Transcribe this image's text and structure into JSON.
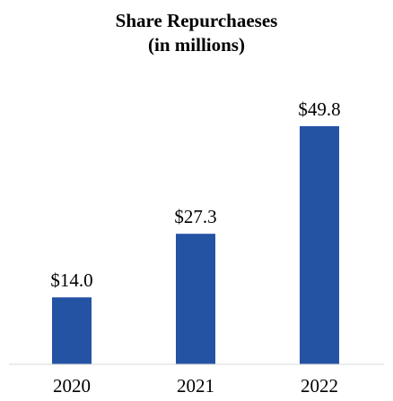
{
  "chart_data": {
    "type": "bar",
    "title": "Share Repurchaeses",
    "subtitle": "(in millions)",
    "categories": [
      "2020",
      "2021",
      "2022"
    ],
    "values": [
      14.0,
      27.3,
      49.8
    ],
    "value_labels": [
      "$14.0",
      "$27.3",
      "$49.8"
    ],
    "xlabel": "",
    "ylabel": "",
    "ylim": [
      0,
      49.8
    ],
    "grid": false,
    "legend": "none",
    "bar_color": "#2453A4",
    "axis_color": "#D9D9D9"
  }
}
